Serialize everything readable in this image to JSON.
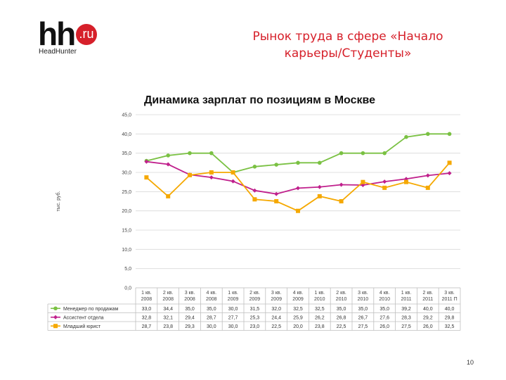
{
  "logo": {
    "main": "hh",
    "badge": ".ru",
    "sub": "HeadHunter"
  },
  "slide_title": "Рынок труда в сфере «Начало карьеры/Студенты»",
  "page_number": "10",
  "colors": {
    "title_red": "#d6202a",
    "manager": "#7ac143",
    "assistant": "#c0208c",
    "lawyer": "#f5a800"
  },
  "chart_data": {
    "type": "line",
    "title": "Динамика зарплат по позициям в Москве",
    "ylabel": "тыс. руб.",
    "xlabel": "",
    "ylim": [
      0,
      45
    ],
    "yticks": [
      "0,0",
      "5,0",
      "10,0",
      "15,0",
      "20,0",
      "25,0",
      "30,0",
      "35,0",
      "40,0",
      "45,0"
    ],
    "grid": true,
    "legend": "table-below",
    "categories": [
      [
        "1 кв.",
        "2008"
      ],
      [
        "2 кв.",
        "2008"
      ],
      [
        "3 кв.",
        "2008"
      ],
      [
        "4 кв.",
        "2008"
      ],
      [
        "1 кв.",
        "2009"
      ],
      [
        "2 кв.",
        "2009"
      ],
      [
        "3 кв.",
        "2009"
      ],
      [
        "4 кв.",
        "2009"
      ],
      [
        "1 кв.",
        "2010"
      ],
      [
        "2 кв.",
        "2010"
      ],
      [
        "3 кв.",
        "2010"
      ],
      [
        "4 кв.",
        "2010"
      ],
      [
        "1 кв.",
        "2011"
      ],
      [
        "2 кв.",
        "2011"
      ],
      [
        "3 кв.",
        "2011 П"
      ]
    ],
    "series": [
      {
        "name": "Менеджер по продажам",
        "color": "#7ac143",
        "marker": "circle",
        "values": [
          33.0,
          34.4,
          35.0,
          35.0,
          30.0,
          31.5,
          32.0,
          32.5,
          32.5,
          35.0,
          35.0,
          35.0,
          39.2,
          40.0,
          40.0
        ],
        "labels": [
          "33,0",
          "34,4",
          "35,0",
          "35,0",
          "30,0",
          "31,5",
          "32,0",
          "32,5",
          "32,5",
          "35,0",
          "35,0",
          "35,0",
          "39,2",
          "40,0",
          "40,0"
        ]
      },
      {
        "name": "Ассистент отдела",
        "color": "#c0208c",
        "marker": "diamond",
        "values": [
          32.8,
          32.1,
          29.4,
          28.7,
          27.7,
          25.3,
          24.4,
          25.9,
          26.2,
          26.8,
          26.7,
          27.6,
          28.3,
          29.2,
          29.8
        ],
        "labels": [
          "32,8",
          "32,1",
          "29,4",
          "28,7",
          "27,7",
          "25,3",
          "24,4",
          "25,9",
          "26,2",
          "26,8",
          "26,7",
          "27,6",
          "28,3",
          "29,2",
          "29,8"
        ]
      },
      {
        "name": "Младший юрист",
        "color": "#f5a800",
        "marker": "square",
        "values": [
          28.7,
          23.8,
          29.3,
          30.0,
          30.0,
          23.0,
          22.5,
          20.0,
          23.8,
          22.5,
          27.5,
          26.0,
          27.5,
          26.0,
          32.5
        ],
        "labels": [
          "28,7",
          "23,8",
          "29,3",
          "30,0",
          "30,0",
          "23,0",
          "22,5",
          "20,0",
          "23,8",
          "22,5",
          "27,5",
          "26,0",
          "27,5",
          "26,0",
          "32,5"
        ]
      }
    ]
  }
}
